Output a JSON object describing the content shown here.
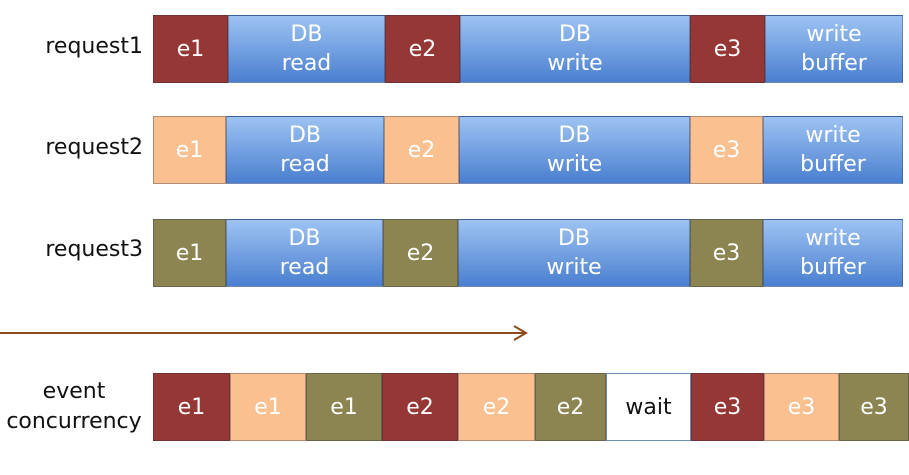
{
  "colors": {
    "request1_event": "#953735",
    "request2_event": "#FAC090",
    "request3_event": "#8C8451",
    "op_top": "#9DC3F2",
    "op_bottom": "#4A7FD0",
    "arrow": "#8B4A1C",
    "wait_bg": "#FFFFFF"
  },
  "requests": [
    {
      "label": "request1",
      "segments": [
        {
          "kind": "event",
          "line1": "e1",
          "line2": ""
        },
        {
          "kind": "op",
          "line1": "DB",
          "line2": "read"
        },
        {
          "kind": "event",
          "line1": "e2",
          "line2": ""
        },
        {
          "kind": "op",
          "line1": "DB",
          "line2": "write"
        },
        {
          "kind": "event",
          "line1": "e3",
          "line2": ""
        },
        {
          "kind": "op",
          "line1": "write",
          "line2": "buffer"
        }
      ]
    },
    {
      "label": "request2",
      "segments": [
        {
          "kind": "event",
          "line1": "e1",
          "line2": ""
        },
        {
          "kind": "op",
          "line1": "DB",
          "line2": "read"
        },
        {
          "kind": "event",
          "line1": "e2",
          "line2": ""
        },
        {
          "kind": "op",
          "line1": "DB",
          "line2": "write"
        },
        {
          "kind": "event",
          "line1": "e3",
          "line2": ""
        },
        {
          "kind": "op",
          "line1": "write",
          "line2": "buffer"
        }
      ]
    },
    {
      "label": "request3",
      "segments": [
        {
          "kind": "event",
          "line1": "e1",
          "line2": ""
        },
        {
          "kind": "op",
          "line1": "DB",
          "line2": "read"
        },
        {
          "kind": "event",
          "line1": "e2",
          "line2": ""
        },
        {
          "kind": "op",
          "line1": "DB",
          "line2": "write"
        },
        {
          "kind": "event",
          "line1": "e3",
          "line2": ""
        },
        {
          "kind": "op",
          "line1": "write",
          "line2": "buffer"
        }
      ]
    }
  ],
  "concurrency": {
    "label_line1": "event",
    "label_line2": "concurrency",
    "segments": [
      {
        "text": "e1",
        "request": 1
      },
      {
        "text": "e1",
        "request": 2
      },
      {
        "text": "e1",
        "request": 3
      },
      {
        "text": "e2",
        "request": 1
      },
      {
        "text": "e2",
        "request": 2
      },
      {
        "text": "e2",
        "request": 3
      },
      {
        "text": "wait",
        "request": 0
      },
      {
        "text": "e3",
        "request": 1
      },
      {
        "text": "e3",
        "request": 2
      },
      {
        "text": "e3",
        "request": 3
      }
    ]
  }
}
